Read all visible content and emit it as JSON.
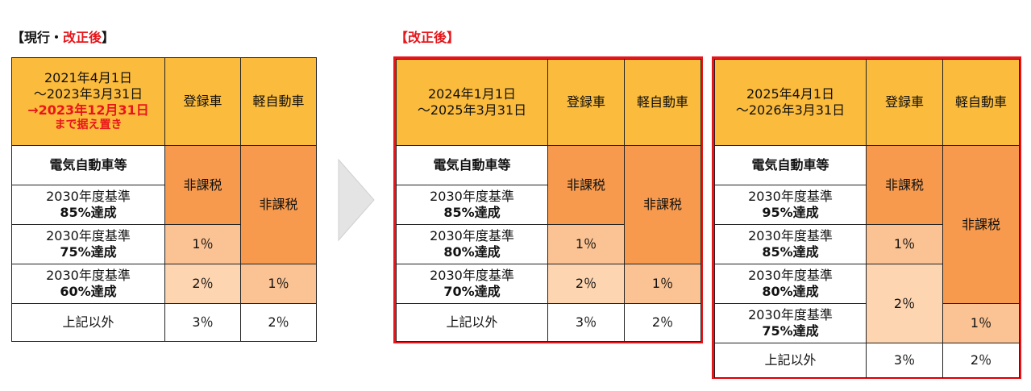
{
  "left_heading": {
    "prefix": "【現行・",
    "red": "改正後",
    "suffix": "】"
  },
  "right_heading": "【改正後】",
  "col_registered": "登録車",
  "col_kei": "軽自動車",
  "table1": {
    "period_line1": "2021年4月1日",
    "period_line2": "～2023年3月31日",
    "period_ext": "→2023年12月31日",
    "period_note": "まで据え置き",
    "ev": "電気自動車等",
    "std": "2030年度基準",
    "r1": "85%達成",
    "r2": "75%達成",
    "r3": "60%達成",
    "other": "上記以外",
    "reg_ev": "非課税",
    "reg_r2": "1％",
    "reg_r3": "2％",
    "reg_other": "3％",
    "kei_ev": "非課税",
    "kei_r3": "1％",
    "kei_other": "2％"
  },
  "table2": {
    "period_line1": "2024年1月1日",
    "period_line2": "～2025年3月31日",
    "ev": "電気自動車等",
    "std": "2030年度基準",
    "r1": "85%達成",
    "r2": "80%達成",
    "r3": "70%達成",
    "other": "上記以外",
    "reg_ev": "非課税",
    "reg_r2": "1％",
    "reg_r3": "2％",
    "reg_other": "3％",
    "kei_ev": "非課税",
    "kei_r3": "1％",
    "kei_other": "2％"
  },
  "table3": {
    "period_line1": "2025年4月1日",
    "period_line2": "～2026年3月31日",
    "ev": "電気自動車等",
    "std": "2030年度基準",
    "r1": "95%達成",
    "r2": "85%達成",
    "r3": "80%達成",
    "r4": "75%達成",
    "other": "上記以外",
    "reg_ev": "非課税",
    "reg_r2": "1％",
    "reg_r3": "2％",
    "reg_other": "3％",
    "kei_ev": "非課税",
    "kei_r4": "1％",
    "kei_other": "2％"
  },
  "colors": {
    "header": "#fbbb3c",
    "exempt": "#f79a4d",
    "rate1": "#fbc394",
    "rate2": "#fdd5b1",
    "accent": "#e8161b"
  }
}
